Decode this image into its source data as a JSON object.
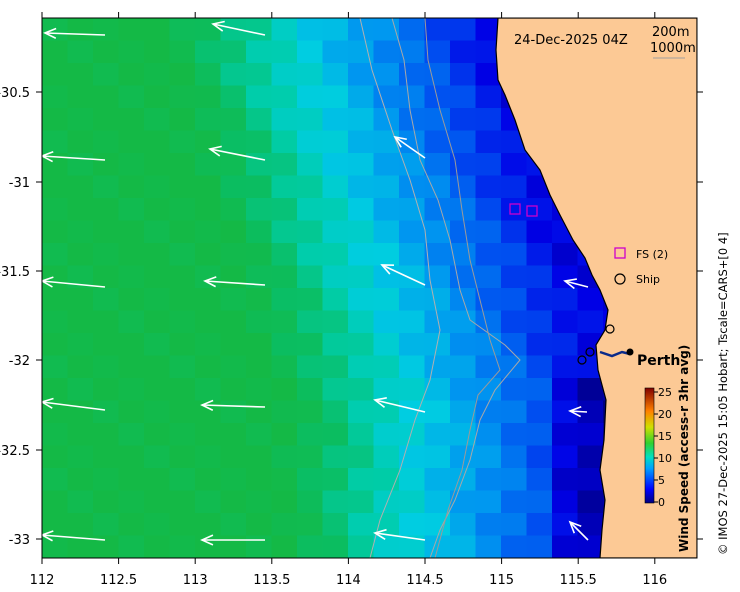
{
  "map": {
    "timestamp": "24-Dec-2025 04Z",
    "contour_legend": [
      "200m",
      "1000m"
    ],
    "x_ticks": [
      "112",
      "112.5",
      "113",
      "113.5",
      "114",
      "114.5",
      "115",
      "115.5",
      "116"
    ],
    "y_ticks": [
      "-30.5",
      "-31",
      "-31.5",
      "-32",
      "-32.5",
      "-33"
    ],
    "legend": {
      "fs_label": "FS (2)",
      "ship_label": "Ship"
    },
    "place_label": "Perth",
    "colorbar": {
      "title": "Wind Speed (access-r 3hr avg)",
      "ticks": [
        "25",
        "20",
        "15",
        "10",
        "5",
        "0"
      ]
    },
    "credit": "© IMOS 27-Dec-2025 15:05 Hobart; Tscale=CARS+[0 4]",
    "colors": {
      "land": "#fcc995",
      "arrow": "#ffffff",
      "fs_marker": "#cc00cc",
      "contour": "#a0a0a0"
    }
  }
}
